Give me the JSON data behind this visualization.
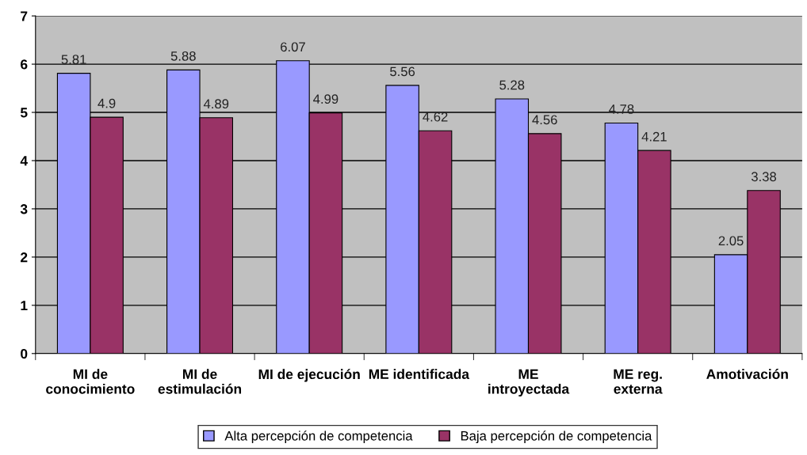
{
  "chart_data": {
    "type": "bar",
    "categories": [
      "MI de\nconocimiento",
      "MI de\nestimulación",
      "MI de ejecución",
      "ME identificada",
      "ME\nintroyectada",
      "ME reg.\nexterna",
      "Amotivación"
    ],
    "series": [
      {
        "name": "Alta percepción de competencia",
        "color": "#9999ff",
        "values": [
          5.81,
          5.88,
          6.07,
          5.56,
          5.28,
          4.78,
          2.05
        ]
      },
      {
        "name": "Baja percepción de competencia",
        "color": "#993366",
        "values": [
          4.9,
          4.89,
          4.99,
          4.62,
          4.56,
          4.21,
          3.38
        ]
      }
    ],
    "ylim": [
      0,
      7
    ],
    "yticks": [
      0,
      1,
      2,
      3,
      4,
      5,
      6,
      7
    ],
    "grid": "y",
    "legend": "bottom",
    "data_labels": true
  }
}
